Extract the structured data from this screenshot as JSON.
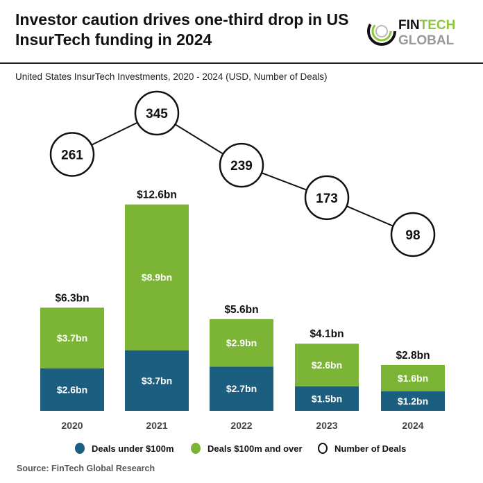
{
  "header": {
    "title": "Investor caution drives one-third drop in US InsurTech funding in 2024",
    "logo_text": "FINTECH GLOBAL"
  },
  "chart_data": {
    "type": "bar",
    "subtitle": "United States InsurTech Investments, 2020 - 2024 (USD, Number of Deals)",
    "categories": [
      "2020",
      "2021",
      "2022",
      "2023",
      "2024"
    ],
    "series": [
      {
        "name": "Deals under $100m",
        "type": "stacked-bar",
        "values": [
          2.6,
          3.7,
          2.7,
          1.5,
          1.2
        ],
        "labels": [
          "$2.6bn",
          "$3.7bn",
          "$2.7bn",
          "$1.5bn",
          "$1.2bn"
        ],
        "color": "#1b5e80"
      },
      {
        "name": "Deals $100m and over",
        "type": "stacked-bar",
        "values": [
          3.7,
          8.9,
          2.9,
          2.6,
          1.6
        ],
        "labels": [
          "$3.7bn",
          "$8.9bn",
          "$2.9bn",
          "$2.6bn",
          "$1.6bn"
        ],
        "color": "#7cb535"
      },
      {
        "name": "Number of Deals",
        "type": "line",
        "values": [
          261,
          345,
          239,
          173,
          98
        ],
        "labels": [
          "261",
          "345",
          "239",
          "173",
          "98"
        ],
        "color": "#111111"
      }
    ],
    "totals": [
      "$6.3bn",
      "$12.6bn",
      "$5.6bn",
      "$4.1bn",
      "$2.8bn"
    ],
    "legend_position": "bottom"
  },
  "legend": {
    "items": [
      "Deals under $100m",
      "Deals $100m and over",
      "Number of Deals"
    ]
  },
  "source": "Source: FinTech Global Research"
}
